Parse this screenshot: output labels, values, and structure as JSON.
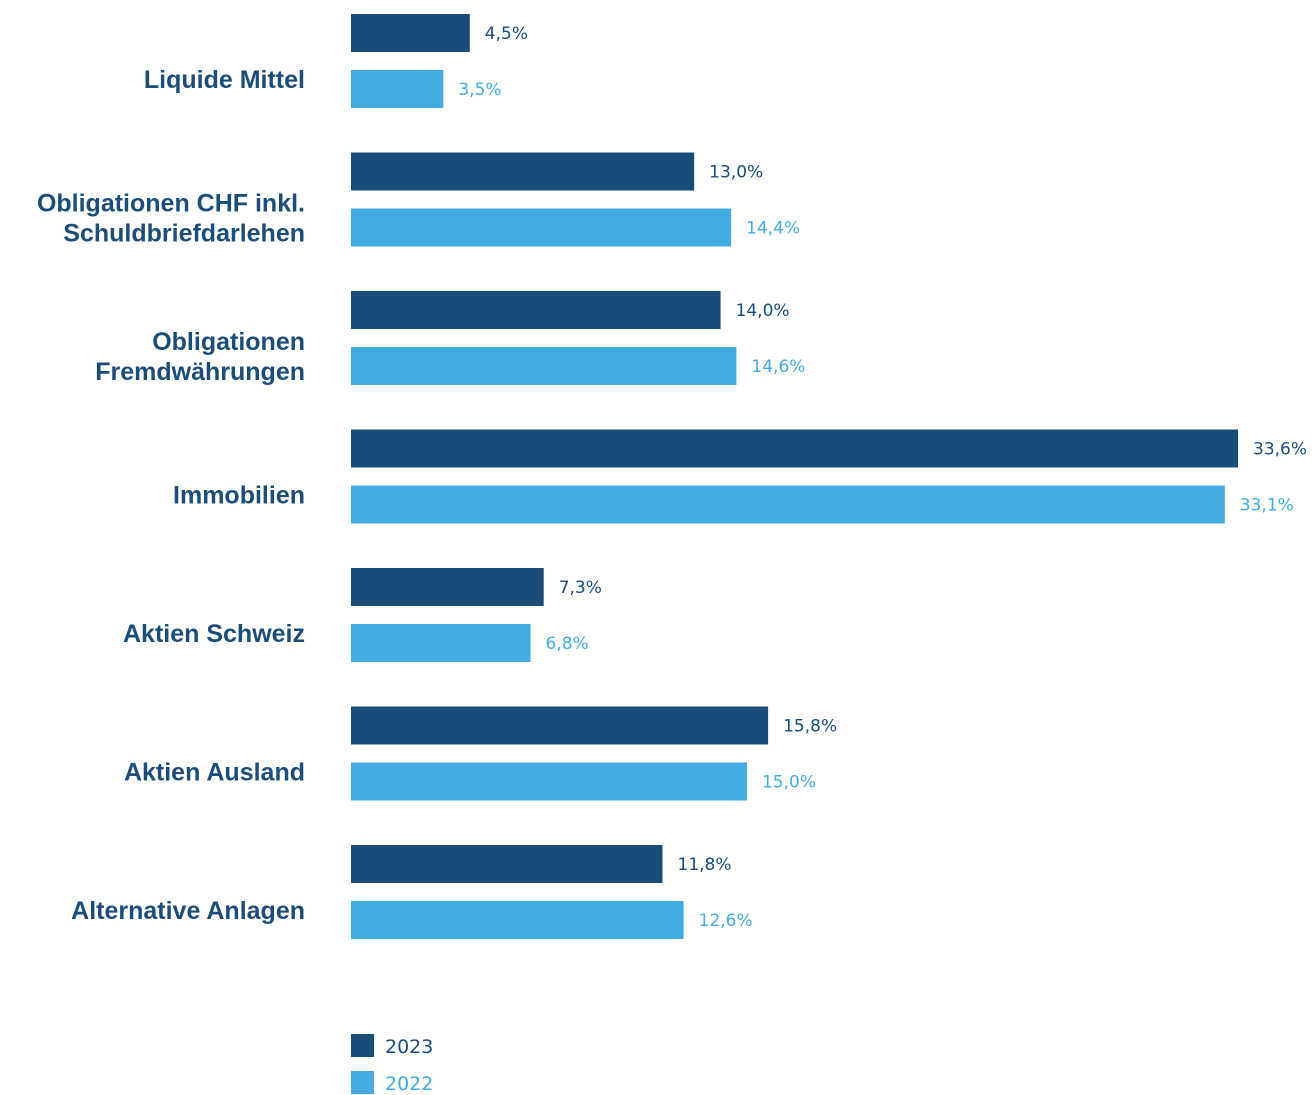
{
  "chart_data": {
    "type": "bar",
    "orientation": "horizontal",
    "categories": [
      [
        "Liquide Mittel"
      ],
      [
        "Obligationen CHF inkl.",
        "Schuldbriefdarlehen"
      ],
      [
        "Obligationen",
        "Fremdwährungen"
      ],
      [
        "Immobilien"
      ],
      [
        "Aktien Schweiz"
      ],
      [
        "Aktien Ausland"
      ],
      [
        "Alternative Anlagen"
      ]
    ],
    "series": [
      {
        "name": "2023",
        "color": "#1b4d7b",
        "values": [
          4.5,
          13.0,
          14.0,
          33.6,
          7.3,
          15.8,
          11.8
        ],
        "labels": [
          "4,5%",
          "13,0%",
          "14,0%",
          "33,6%",
          "7,3%",
          "15,8%",
          "11,8%"
        ]
      },
      {
        "name": "2022",
        "color": "#42ace2",
        "values": [
          3.5,
          14.4,
          14.6,
          33.1,
          6.8,
          15.0,
          12.6
        ],
        "labels": [
          "3,5%",
          "14,4%",
          "14,6%",
          "33,1%",
          "6,8%",
          "15,0%",
          "12,6%"
        ]
      }
    ],
    "xlim": [
      0,
      33.6
    ],
    "legend": "bottom-left",
    "grid": false,
    "category_label_color": "#1b4d7b"
  }
}
